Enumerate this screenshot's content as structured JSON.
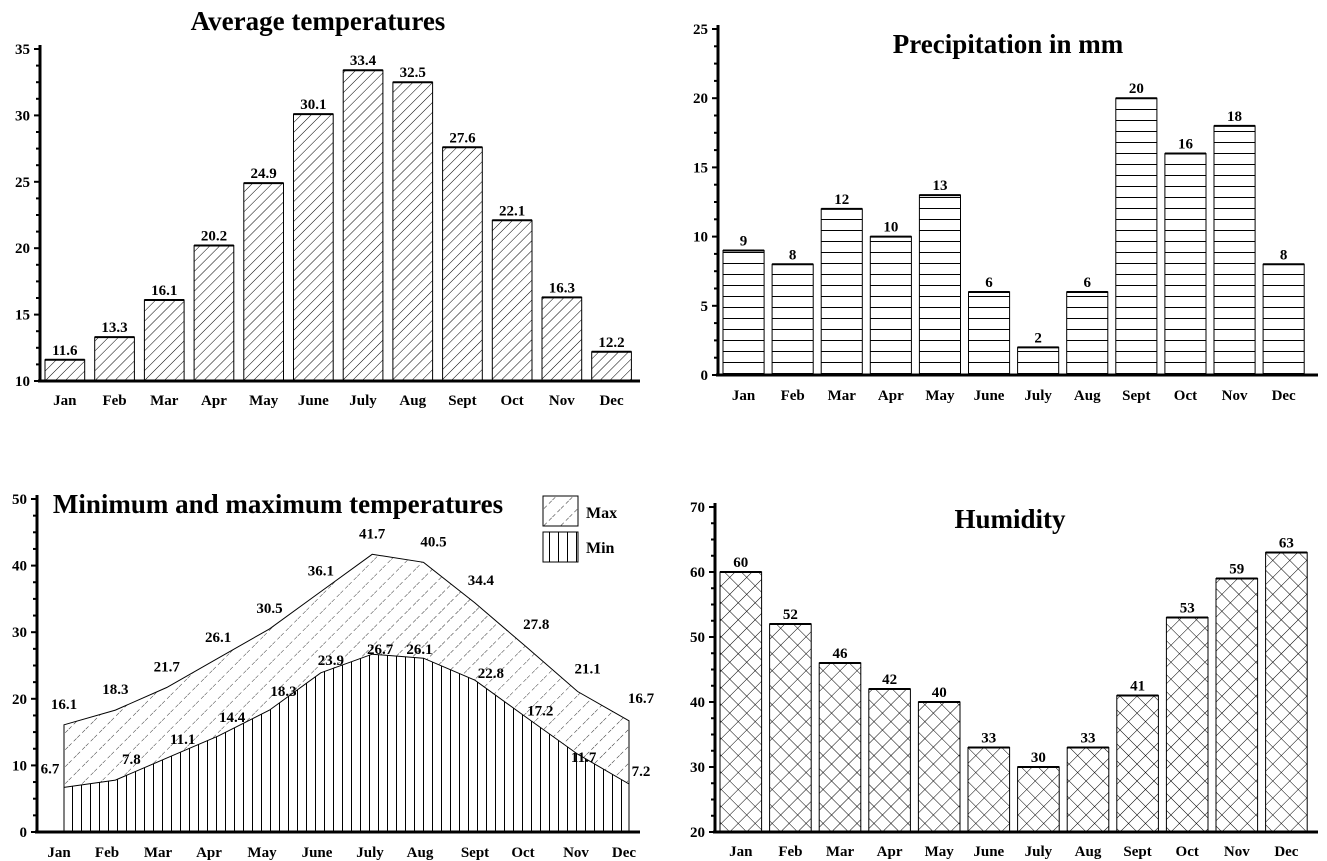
{
  "chart_data": [
    {
      "type": "bar",
      "title": "Average temperatures",
      "categories": [
        "Jan",
        "Feb",
        "Mar",
        "Apr",
        "May",
        "June",
        "July",
        "Aug",
        "Sept",
        "Oct",
        "Nov",
        "Dec"
      ],
      "values": [
        11.6,
        13.3,
        16.1,
        20.2,
        24.9,
        30.1,
        33.4,
        32.5,
        27.6,
        22.1,
        16.3,
        12.2
      ],
      "ylim": [
        10,
        35
      ],
      "yticks": [
        10,
        15,
        20,
        25,
        30,
        35
      ],
      "pattern": "diagonal-hatch",
      "grid": false
    },
    {
      "type": "bar",
      "title": "Precipitation in mm",
      "categories": [
        "Jan",
        "Feb",
        "Mar",
        "Apr",
        "May",
        "June",
        "July",
        "Aug",
        "Sept",
        "Oct",
        "Nov",
        "Dec"
      ],
      "values": [
        9,
        8,
        12,
        10,
        13,
        6,
        2,
        6,
        20,
        16,
        18,
        8
      ],
      "ylim": [
        0,
        25
      ],
      "yticks": [
        0,
        5,
        10,
        15,
        20,
        25
      ],
      "pattern": "horizontal-lines",
      "grid": false
    },
    {
      "type": "area",
      "title": "Minimum and maximum temperatures",
      "categories": [
        "Jan",
        "Feb",
        "Mar",
        "Apr",
        "May",
        "June",
        "July",
        "Aug",
        "Sept",
        "Oct",
        "Nov",
        "Dec"
      ],
      "series": [
        {
          "name": "Max",
          "values": [
            16.1,
            18.3,
            21.7,
            26.1,
            30.5,
            36.1,
            41.7,
            40.5,
            34.4,
            27.8,
            21.1,
            16.7
          ],
          "pattern": "dashed-diagonal"
        },
        {
          "name": "Min",
          "values": [
            6.7,
            7.8,
            11.1,
            14.4,
            18.3,
            23.9,
            26.7,
            26.1,
            22.8,
            17.2,
            11.7,
            7.2
          ],
          "pattern": "vertical-lines"
        }
      ],
      "ylim": [
        0,
        50
      ],
      "yticks": [
        0,
        10,
        20,
        30,
        40,
        50
      ],
      "legend": "top-right",
      "grid": false
    },
    {
      "type": "bar",
      "title": "Humidity",
      "categories": [
        "Jan",
        "Feb",
        "Mar",
        "Apr",
        "May",
        "June",
        "July",
        "Aug",
        "Sept",
        "Oct",
        "Nov",
        "Dec"
      ],
      "values": [
        60,
        52,
        46,
        42,
        40,
        33,
        30,
        33,
        41,
        53,
        59,
        63
      ],
      "ylim": [
        20,
        70
      ],
      "yticks": [
        20,
        30,
        40,
        50,
        60,
        70
      ],
      "pattern": "cross-hatch",
      "grid": false
    }
  ]
}
